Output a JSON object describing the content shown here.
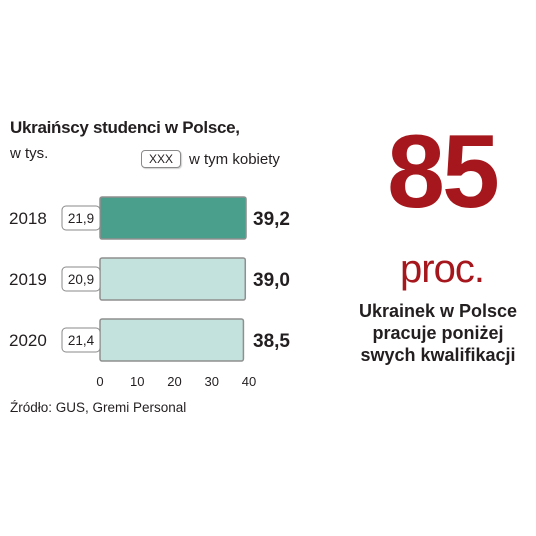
{
  "chart_data": {
    "type": "bar",
    "orientation": "horizontal",
    "title": "Ukraińscy studenci w Polsce,",
    "subtitle": "w tys.",
    "legend": {
      "box_label": "XXX",
      "label": "w tym kobiety"
    },
    "categories": [
      "2018",
      "2019",
      "2020"
    ],
    "series": [
      {
        "name": "",
        "values": [
          39.2,
          39.0,
          38.5
        ],
        "labels": [
          "39,2",
          "39,0",
          "38,5"
        ]
      },
      {
        "name": "w tym kobiety",
        "values": [
          21.9,
          20.9,
          21.4
        ],
        "labels": [
          "21,9",
          "20,9",
          "21,4"
        ]
      }
    ],
    "xlim": [
      0,
      40
    ],
    "xticks": [
      0,
      10,
      20,
      30,
      40
    ],
    "xtick_labels": [
      "0",
      "10",
      "20",
      "30",
      "40"
    ],
    "grid": false,
    "highlight_category": "2018",
    "colors": {
      "highlight": "#4a9e8c",
      "bar": "#c4e2dd",
      "bar_border": "#8f8f8f"
    }
  },
  "source": "Źródło: GUS, Gremi Personal",
  "stat": {
    "value": "85",
    "unit": "proc.",
    "lines": [
      "Ukrainek w Polsce",
      "pracuje poniżej",
      "swych kwalifikacji"
    ],
    "color": "#a5171c"
  }
}
